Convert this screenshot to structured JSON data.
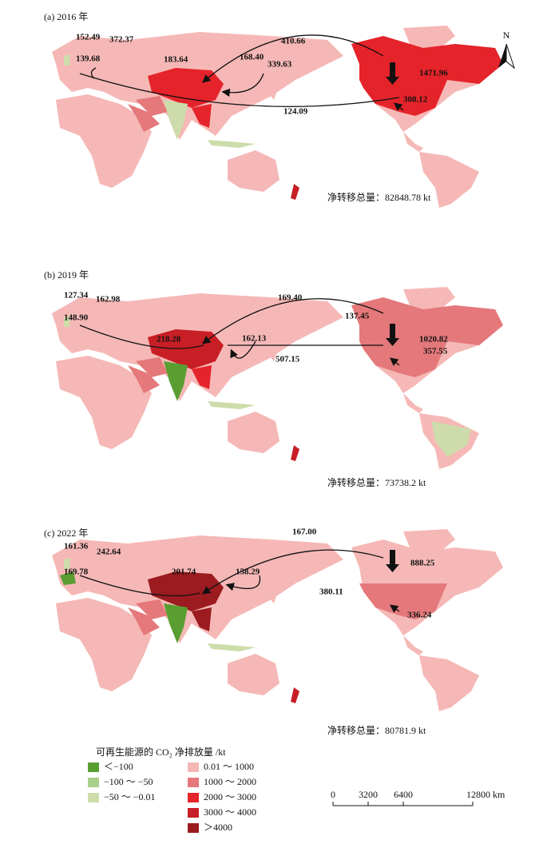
{
  "panels": [
    {
      "label": "(a) 2016 年",
      "flows": [
        "410.66",
        "152.49",
        "372.37",
        "139.68",
        "183.64",
        "168.40",
        "339.63",
        "1471.96",
        "308.12",
        "124.09"
      ],
      "total": "净转移总量：82848.78 kt"
    },
    {
      "label": "(b) 2019 年",
      "flows": [
        "169.40",
        "127.34",
        "162.98",
        "148.90",
        "218.28",
        "162.13",
        "137.45",
        "1020.82",
        "507.15",
        "357.55"
      ],
      "total": "净转移总量：73738.2 kt"
    },
    {
      "label": "(c) 2022 年",
      "flows": [
        "167.00",
        "161.36",
        "242.64",
        "169.78",
        "201.74",
        "158.29",
        "380.11",
        "888.25",
        "336.24"
      ],
      "total": "净转移总量：80781.9 kt"
    }
  ],
  "north": "N",
  "legend": {
    "title": "可再生能源的 CO₂ 净排放量 /kt",
    "items": [
      {
        "label": "＜−100",
        "color": "#5a9e32"
      },
      {
        "label": "−100 ～ −50",
        "color": "#a9cf8a"
      },
      {
        "label": "−50 ～ −0.01",
        "color": "#cddcaa"
      },
      {
        "label": "0.01 ～ 1000",
        "color": "#f5b8b6"
      },
      {
        "label": "1000 ～ 2000",
        "color": "#e4787a"
      },
      {
        "label": "2000 ～ 3000",
        "color": "#e5232a"
      },
      {
        "label": "3000 ～ 4000",
        "color": "#c81e26"
      },
      {
        "label": "＞4000",
        "color": "#9b1b20"
      }
    ]
  },
  "scale": [
    "0",
    "3200",
    "6400",
    "12800 km"
  ]
}
